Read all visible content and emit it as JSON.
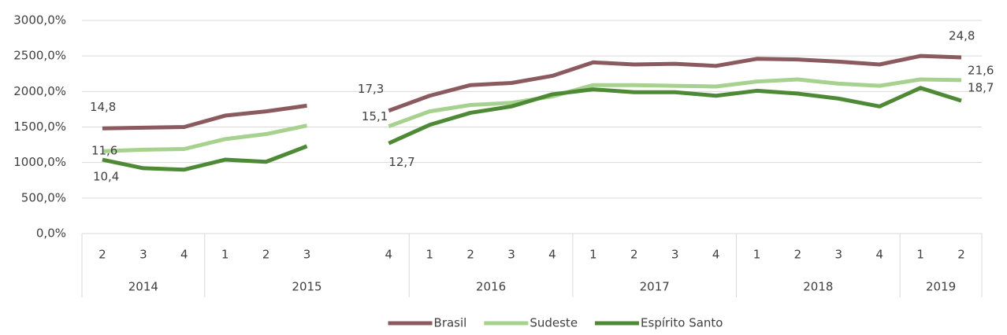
{
  "chart_data": {
    "type": "line",
    "categories": [
      "2",
      "3",
      "4",
      "1",
      "2",
      "3",
      null,
      "4",
      "1",
      "2",
      "3",
      "4",
      "1",
      "2",
      "3",
      "4",
      "1",
      "2",
      "3",
      "4",
      "1",
      "2"
    ],
    "groups": [
      {
        "label": "2014",
        "count": 3
      },
      {
        "label": "2015",
        "count": 5
      },
      {
        "label": "2016",
        "count": 4
      },
      {
        "label": "2017",
        "count": 4
      },
      {
        "label": "2018",
        "count": 4
      },
      {
        "label": "2019",
        "count": 2
      }
    ],
    "series": [
      {
        "name": "Brasil",
        "color": "#8b5a5f",
        "values": [
          1480,
          1490,
          1500,
          1660,
          1720,
          1800,
          null,
          1730,
          1940,
          2090,
          2120,
          2220,
          2410,
          2380,
          2390,
          2360,
          2460,
          2450,
          2420,
          2380,
          2500,
          2480
        ],
        "value_labels": [
          "14,8",
          null,
          null,
          null,
          null,
          null,
          null,
          "17,3",
          null,
          null,
          null,
          null,
          null,
          null,
          null,
          null,
          null,
          null,
          null,
          null,
          null,
          "24,8"
        ]
      },
      {
        "name": "Sudeste",
        "color": "#a6d18e",
        "values": [
          1160,
          1180,
          1190,
          1330,
          1400,
          1520,
          null,
          1510,
          1720,
          1810,
          1840,
          1930,
          2090,
          2090,
          2080,
          2070,
          2140,
          2170,
          2110,
          2080,
          2170,
          2160
        ],
        "value_labels": [
          "11,6",
          null,
          null,
          null,
          null,
          null,
          null,
          "15,1",
          null,
          null,
          null,
          null,
          null,
          null,
          null,
          null,
          null,
          null,
          null,
          null,
          null,
          "21,6"
        ]
      },
      {
        "name": "Espírito Santo",
        "color": "#4e8a35",
        "values": [
          1040,
          920,
          900,
          1040,
          1010,
          1230,
          null,
          1270,
          1530,
          1700,
          1790,
          1960,
          2030,
          1990,
          1990,
          1940,
          2010,
          1970,
          1900,
          1790,
          2050,
          1870
        ],
        "value_labels": [
          "10,4",
          null,
          null,
          null,
          null,
          null,
          null,
          "12,7",
          null,
          null,
          null,
          null,
          null,
          null,
          null,
          null,
          null,
          null,
          null,
          null,
          null,
          "18,7"
        ]
      }
    ],
    "ylim": [
      0,
      3000
    ],
    "yticks": [
      {
        "value": 0,
        "label": "0,0%"
      },
      {
        "value": 500,
        "label": "500,0%"
      },
      {
        "value": 1000,
        "label": "1000,0%"
      },
      {
        "value": 1500,
        "label": "1500,0%"
      },
      {
        "value": 2000,
        "label": "2000,0%"
      },
      {
        "value": 2500,
        "label": "2500,0%"
      },
      {
        "value": 3000,
        "label": "3000,0%"
      }
    ],
    "grid": true,
    "legend": "bottom"
  }
}
